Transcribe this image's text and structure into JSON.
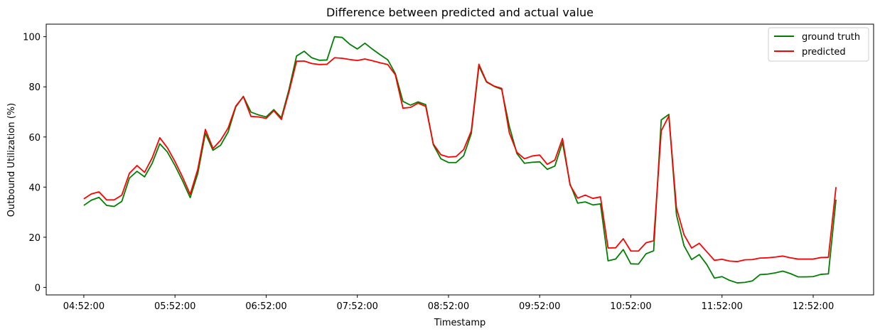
{
  "chart_data": {
    "type": "line",
    "title": "Difference between predicted and actual value",
    "xlabel": "Timestamp",
    "ylabel": "Outbound Utilization (%)",
    "x_start": "04:52:00",
    "x_step_minutes": 5,
    "xticks": [
      "04:52:00",
      "05:52:00",
      "06:52:00",
      "07:52:00",
      "08:52:00",
      "09:52:00",
      "10:52:00",
      "11:52:00",
      "12:52:00"
    ],
    "yticks": [
      0,
      20,
      40,
      60,
      80,
      100
    ],
    "ylim": [
      -3,
      105
    ],
    "legend_position": "top-right",
    "series": [
      {
        "name": "ground truth",
        "color": "#008000",
        "values": [
          32.7,
          34.8,
          35.9,
          32.7,
          32.3,
          34.3,
          43.6,
          46.3,
          44.1,
          49.5,
          57.3,
          54.0,
          48.6,
          42.5,
          35.8,
          45.4,
          61.5,
          54.7,
          56.7,
          62.0,
          72.0,
          76.2,
          69.9,
          68.8,
          68.0,
          70.9,
          67.7,
          78.9,
          92.3,
          94.2,
          91.6,
          90.6,
          90.7,
          100.0,
          99.7,
          97.0,
          95.1,
          97.4,
          95.0,
          92.8,
          90.8,
          85.3,
          74.2,
          72.7,
          74.0,
          72.9,
          56.9,
          51.3,
          49.8,
          49.8,
          52.5,
          61.4,
          88.3,
          81.9,
          80.2,
          79.0,
          64.3,
          53.4,
          49.5,
          49.9,
          50.1,
          47.1,
          48.4,
          57.8,
          41.2,
          33.6,
          34.1,
          32.9,
          33.3,
          10.6,
          11.3,
          15.1,
          9.4,
          9.3,
          13.4,
          14.6,
          66.8,
          69.0,
          29.0,
          16.6,
          11.1,
          13.1,
          9.1,
          3.7,
          4.3,
          2.8,
          1.8,
          2.0,
          2.6,
          5.1,
          5.3,
          5.8,
          6.5,
          5.5,
          4.2,
          4.2,
          4.3,
          5.2,
          5.4,
          35.0
        ]
      },
      {
        "name": "predicted",
        "color": "#ff0000",
        "values": [
          35.3,
          37.3,
          38.1,
          34.9,
          34.9,
          36.8,
          45.5,
          48.6,
          45.9,
          51.7,
          59.7,
          55.7,
          50.2,
          44.0,
          37.1,
          47.1,
          63.0,
          55.4,
          58.7,
          63.6,
          72.3,
          76.1,
          68.2,
          68.0,
          67.4,
          70.5,
          67.0,
          77.9,
          90.2,
          90.3,
          89.3,
          88.9,
          89.0,
          91.6,
          91.4,
          90.9,
          90.5,
          91.1,
          90.4,
          89.6,
          88.9,
          84.8,
          71.5,
          71.8,
          73.5,
          72.2,
          57.2,
          52.9,
          52.0,
          52.2,
          55.0,
          62.4,
          89.0,
          82.1,
          80.3,
          79.4,
          61.7,
          53.9,
          51.3,
          52.4,
          52.8,
          49.1,
          50.8,
          59.4,
          40.8,
          35.6,
          36.8,
          35.5,
          36.1,
          15.7,
          15.8,
          19.4,
          14.5,
          14.5,
          17.8,
          18.6,
          62.4,
          68.4,
          31.7,
          21.0,
          15.7,
          17.6,
          14.2,
          10.8,
          11.2,
          10.5,
          10.3,
          11.0,
          11.1,
          11.7,
          11.8,
          12.1,
          12.5,
          11.8,
          11.3,
          11.3,
          11.3,
          11.9,
          12.0,
          40.0
        ]
      }
    ]
  }
}
